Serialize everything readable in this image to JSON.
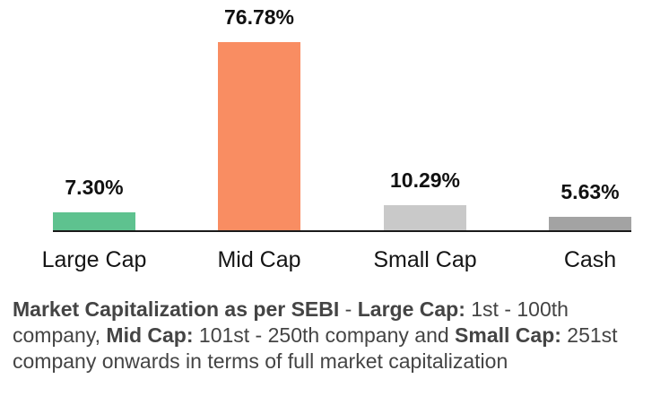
{
  "chart_data": {
    "type": "bar",
    "categories": [
      "Large Cap",
      "Mid Cap",
      "Small Cap",
      "Cash"
    ],
    "values": [
      7.3,
      76.78,
      10.29,
      5.63
    ],
    "value_labels": [
      "7.30%",
      "76.78%",
      "10.29%",
      "5.63%"
    ],
    "bar_colors": [
      "#5EC28F",
      "#F98D62",
      "#C9C9C9",
      "#A3A3A3"
    ],
    "title": "",
    "xlabel": "",
    "ylabel": "",
    "ylim": [
      0,
      80
    ],
    "grid": false,
    "legend": false,
    "axis_line_color": "#1A1A1A",
    "value_label_color": "#111111",
    "category_label_color": "#141414"
  },
  "footnote": {
    "text_color": "#444444",
    "lines": [
      {
        "segments": [
          {
            "text": "Market Capitalization as per SEBI",
            "bold": true
          },
          {
            "text": " - ",
            "bold": false
          },
          {
            "text": "Large Cap:",
            "bold": true
          },
          {
            "text": " 1st - 100th",
            "bold": false
          }
        ]
      },
      {
        "segments": [
          {
            "text": "company, ",
            "bold": false
          },
          {
            "text": "Mid Cap:",
            "bold": true
          },
          {
            "text": " 101st - 250th company and ",
            "bold": false
          },
          {
            "text": "Small Cap:",
            "bold": true
          },
          {
            "text": " 251st",
            "bold": false
          }
        ]
      },
      {
        "segments": [
          {
            "text": "company onwards in terms of full market capitalization",
            "bold": false
          }
        ]
      }
    ]
  }
}
